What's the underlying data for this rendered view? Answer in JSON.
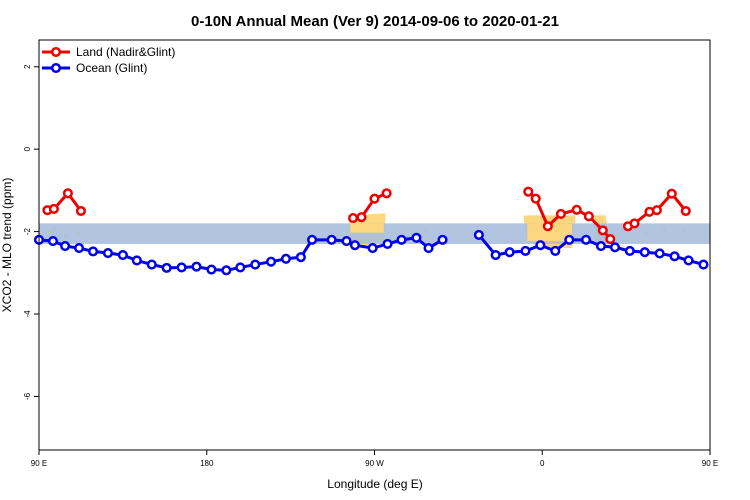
{
  "chart_data": {
    "type": "line",
    "title": "0-10N Annual Mean (Ver 9)   2014-09-06 to 2020-01-21",
    "xlabel": "Longitude (deg E)",
    "ylabel": "XCO2 - MLO trend (ppm)",
    "xlim": [
      90,
      450
    ],
    "ylim": [
      -7.3,
      2.65
    ],
    "x_ticks": [
      {
        "value": 90,
        "label": "90 E"
      },
      {
        "value": 180,
        "label": "180"
      },
      {
        "value": 270,
        "label": "90 W"
      },
      {
        "value": 360,
        "label": "0"
      },
      {
        "value": 450,
        "label": "90 E"
      },
      {
        "value": 540,
        "label": "180"
      }
    ],
    "y_ticks": [
      {
        "value": 2,
        "label": "2"
      },
      {
        "value": 0,
        "label": "0"
      },
      {
        "value": -2,
        "label": "-2"
      },
      {
        "value": -4,
        "label": "-4"
      },
      {
        "value": -6,
        "label": "-6"
      }
    ],
    "band": {
      "y_min": -2.3,
      "y_max": -1.8,
      "color": "#aabfdd"
    },
    "land_color": "#fcd77f",
    "grid": false,
    "legend_position": "top-left",
    "series": [
      {
        "name": "Land (Nadir&Glint)",
        "color": "#ee0000",
        "segments": [
          [
            [
              94.5,
              -1.48
            ],
            [
              98.0,
              -1.45
            ],
            [
              105.5,
              -1.07
            ],
            [
              112.5,
              -1.5
            ]
          ],
          [
            [
              258.5,
              -1.67
            ],
            [
              263.0,
              -1.65
            ],
            [
              270.0,
              -1.2
            ],
            [
              276.5,
              -1.07
            ]
          ],
          [
            [
              352.5,
              -1.03
            ],
            [
              356.5,
              -1.2
            ],
            [
              363.0,
              -1.87
            ],
            [
              370.0,
              -1.57
            ],
            [
              378.5,
              -1.47
            ],
            [
              385.0,
              -1.63
            ],
            [
              392.5,
              -1.97
            ],
            [
              396.5,
              -2.18
            ]
          ],
          [
            [
              406.0,
              -1.87
            ],
            [
              409.5,
              -1.8
            ],
            [
              417.5,
              -1.52
            ],
            [
              421.5,
              -1.48
            ],
            [
              429.5,
              -1.08
            ],
            [
              437.0,
              -1.5
            ]
          ]
        ]
      },
      {
        "name": "Ocean (Glint)",
        "color": "#0000ee",
        "segments": [
          [
            [
              90.0,
              -2.2
            ],
            [
              97.5,
              -2.23
            ],
            [
              104.0,
              -2.35
            ],
            [
              111.5,
              -2.4
            ],
            [
              119.0,
              -2.48
            ],
            [
              127.0,
              -2.52
            ],
            [
              135.0,
              -2.57
            ],
            [
              142.5,
              -2.7
            ],
            [
              150.5,
              -2.8
            ],
            [
              158.5,
              -2.88
            ],
            [
              166.5,
              -2.87
            ],
            [
              174.5,
              -2.85
            ],
            [
              182.5,
              -2.92
            ],
            [
              190.5,
              -2.94
            ],
            [
              198.0,
              -2.87
            ],
            [
              206.0,
              -2.8
            ],
            [
              214.5,
              -2.73
            ],
            [
              222.5,
              -2.66
            ],
            [
              230.5,
              -2.62
            ],
            [
              236.5,
              -2.2
            ],
            [
              247.0,
              -2.2
            ],
            [
              255.0,
              -2.23
            ],
            [
              259.5,
              -2.33
            ],
            [
              269.0,
              -2.4
            ],
            [
              277.0,
              -2.3
            ],
            [
              284.5,
              -2.2
            ],
            [
              292.5,
              -2.15
            ],
            [
              299.0,
              -2.4
            ],
            [
              306.5,
              -2.2
            ]
          ],
          [
            [
              326.0,
              -2.08
            ],
            [
              335.0,
              -2.57
            ],
            [
              342.5,
              -2.5
            ],
            [
              351.0,
              -2.47
            ],
            [
              359.0,
              -2.33
            ],
            [
              367.0,
              -2.47
            ],
            [
              374.5,
              -2.2
            ],
            [
              383.5,
              -2.2
            ],
            [
              391.5,
              -2.35
            ],
            [
              399.0,
              -2.38
            ],
            [
              407.0,
              -2.47
            ],
            [
              415.0,
              -2.5
            ],
            [
              423.0,
              -2.53
            ],
            [
              431.0,
              -2.6
            ],
            [
              438.5,
              -2.7
            ],
            [
              446.5,
              -2.8
            ]
          ]
        ]
      }
    ]
  }
}
